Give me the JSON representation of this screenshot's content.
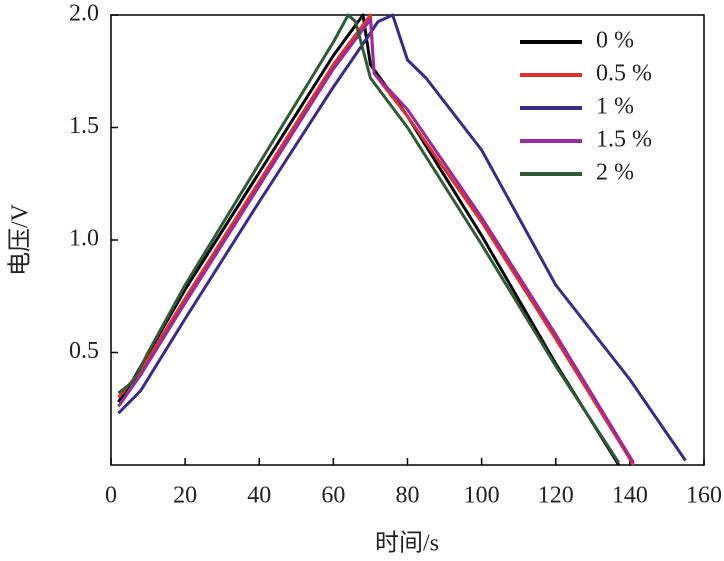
{
  "chart_data": {
    "type": "line",
    "xlabel": "时间/s",
    "ylabel": "电压/V",
    "xlim": [
      0,
      160
    ],
    "xticks": [
      0,
      20,
      40,
      60,
      80,
      100,
      120,
      140,
      160
    ],
    "ylim": [
      0,
      2
    ],
    "yticks": [
      0.5,
      {
        "value": 1,
        "label": "1.0"
      },
      1.5,
      {
        "value": 2,
        "label": "2.0"
      }
    ],
    "legend": "upper right",
    "series": [
      {
        "name": "0 %",
        "color": "#000000",
        "x": [
          2,
          6,
          20,
          40,
          60,
          68,
          70,
          80,
          100,
          120,
          137
        ],
        "values": [
          0.28,
          0.38,
          0.78,
          1.3,
          1.82,
          2.0,
          1.78,
          1.55,
          1.02,
          0.45,
          0.0
        ]
      },
      {
        "name": "0.5 %",
        "color": "#e0302a",
        "x": [
          2,
          8,
          20,
          40,
          60,
          70,
          71,
          80,
          100,
          120,
          141
        ],
        "values": [
          0.3,
          0.42,
          0.74,
          1.26,
          1.78,
          2.0,
          1.74,
          1.55,
          1.08,
          0.56,
          0.0
        ]
      },
      {
        "name": "1 %",
        "color": "#3a2a8c",
        "x": [
          2,
          8,
          20,
          40,
          60,
          70,
          72,
          76,
          80,
          85,
          100,
          120,
          140,
          155
        ],
        "values": [
          0.23,
          0.33,
          0.65,
          1.17,
          1.68,
          1.92,
          1.97,
          2.0,
          1.8,
          1.72,
          1.4,
          0.8,
          0.38,
          0.02
        ]
      },
      {
        "name": "1.5 %",
        "color": "#9b2a9e",
        "x": [
          2,
          8,
          20,
          40,
          60,
          70,
          71,
          80,
          100,
          120,
          141
        ],
        "values": [
          0.26,
          0.4,
          0.72,
          1.24,
          1.76,
          1.98,
          1.74,
          1.58,
          1.1,
          0.58,
          0.01
        ]
      },
      {
        "name": "2 %",
        "color": "#2e5a36",
        "x": [
          2,
          6,
          10,
          20,
          40,
          60,
          64,
          66,
          70,
          80,
          100,
          120,
          137
        ],
        "values": [
          0.32,
          0.37,
          0.5,
          0.8,
          1.34,
          1.88,
          2.0,
          1.97,
          1.72,
          1.5,
          0.98,
          0.44,
          0.01
        ]
      }
    ]
  }
}
